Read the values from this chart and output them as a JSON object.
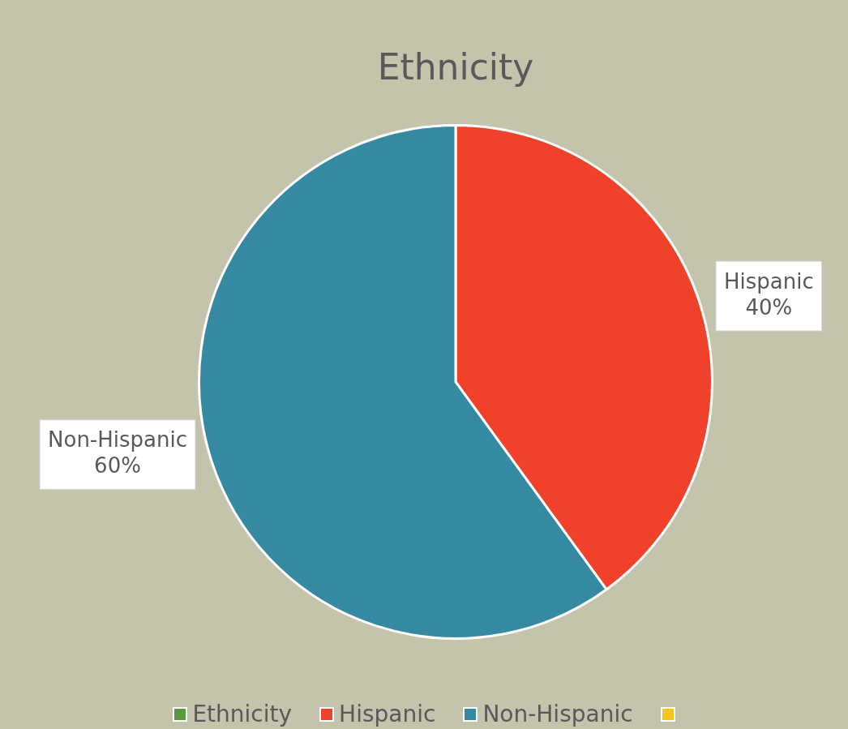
{
  "chart_data": {
    "type": "pie",
    "title": "Ethnicity",
    "categories": [
      "Ethnicity",
      "Hispanic",
      "Non-Hispanic",
      null
    ],
    "values": [
      0,
      40,
      60,
      0
    ],
    "colors": [
      "#5b9a3c",
      "#f0412b",
      "#3589a1",
      "#f5c518"
    ],
    "value_labels": [
      null,
      "40%",
      "60%",
      null
    ],
    "legend": "bottom"
  }
}
